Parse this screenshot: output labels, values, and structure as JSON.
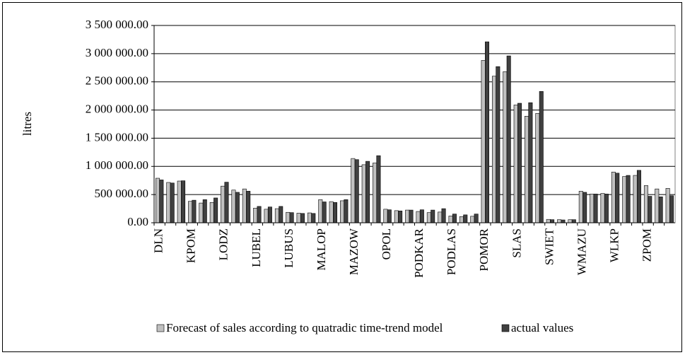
{
  "chart_data": {
    "type": "bar",
    "y_label": "litres",
    "categories": [
      "DLN",
      null,
      null,
      "KPOM",
      null,
      null,
      "LODZ",
      null,
      null,
      "LUBEL",
      null,
      null,
      "LUBUS",
      null,
      null,
      "MALOP",
      null,
      null,
      "MAZOW",
      null,
      null,
      "OPOL",
      null,
      null,
      "PODKAR",
      null,
      null,
      "PODLAS",
      null,
      null,
      "POMOR",
      null,
      null,
      "SLAS",
      null,
      null,
      "SWIET",
      null,
      null,
      "WMAZU",
      null,
      null,
      "WLKP",
      null,
      null,
      "ZPOM",
      null,
      null
    ],
    "series": [
      {
        "name": "Forecast of sales according to quatradic time-trend model",
        "color": "#c0c0c0",
        "values": [
          790000,
          715000,
          740000,
          380000,
          350000,
          360000,
          650000,
          580000,
          600000,
          260000,
          240000,
          250000,
          185000,
          170000,
          175000,
          410000,
          375000,
          390000,
          1140000,
          1030000,
          1060000,
          240000,
          215000,
          225000,
          200000,
          180000,
          190000,
          120000,
          110000,
          115000,
          2880000,
          2600000,
          2680000,
          2090000,
          1890000,
          1940000,
          60000,
          55000,
          55000,
          560000,
          510000,
          520000,
          900000,
          820000,
          840000,
          660000,
          600000,
          610000
        ]
      },
      {
        "name": "actual values",
        "color": "#404040",
        "values": [
          760000,
          705000,
          745000,
          400000,
          410000,
          440000,
          720000,
          540000,
          560000,
          290000,
          280000,
          290000,
          180000,
          165000,
          165000,
          370000,
          360000,
          410000,
          1120000,
          1090000,
          1190000,
          230000,
          210000,
          225000,
          230000,
          225000,
          250000,
          155000,
          140000,
          155000,
          3210000,
          2770000,
          2960000,
          2120000,
          2130000,
          2330000,
          55000,
          50000,
          55000,
          540000,
          510000,
          510000,
          880000,
          840000,
          930000,
          470000,
          460000,
          480000
        ]
      }
    ],
    "ylim": [
      0,
      3500000
    ],
    "yticks": [
      {
        "value": 0,
        "label": "0.00"
      },
      {
        "value": 500000,
        "label": "500 000.00"
      },
      {
        "value": 1000000,
        "label": "1 000 000.00"
      },
      {
        "value": 1500000,
        "label": "1 500 000.00"
      },
      {
        "value": 2000000,
        "label": "2 000 000.00"
      },
      {
        "value": 2500000,
        "label": "2 500 000.00"
      },
      {
        "value": 3000000,
        "label": "3 000 000.00"
      },
      {
        "value": 3500000,
        "label": "3 500 000.00"
      }
    ],
    "grid": true,
    "legend": "bottom"
  }
}
